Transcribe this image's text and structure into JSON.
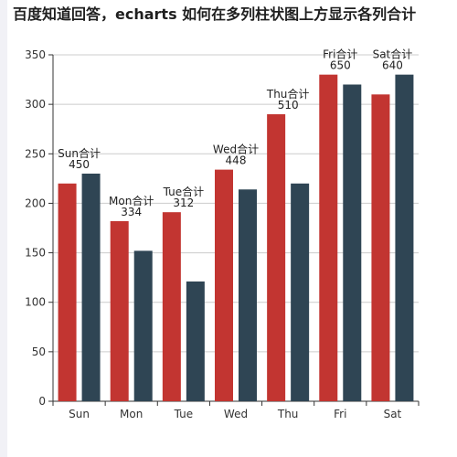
{
  "title": "百度知道回答，echarts 如何在多列柱状图上方显示各列合计",
  "chart_data": {
    "type": "bar",
    "categories": [
      "Sun",
      "Mon",
      "Tue",
      "Wed",
      "Thu",
      "Fri",
      "Sat"
    ],
    "series": [
      {
        "values": [
          220,
          182,
          191,
          234,
          290,
          330,
          310
        ],
        "color": "#c23531"
      },
      {
        "values": [
          230,
          152,
          121,
          214,
          220,
          320,
          330
        ],
        "color": "#2f4554"
      }
    ],
    "totals": [
      {
        "label": "Sun合计",
        "value": "450"
      },
      {
        "label": "Mon合计",
        "value": "334"
      },
      {
        "label": "Tue合计",
        "value": "312"
      },
      {
        "label": "Wed合计",
        "value": "448"
      },
      {
        "label": "Thu合计",
        "value": "510"
      },
      {
        "label": "Fri合计",
        "value": "650"
      },
      {
        "label": "Sat合计",
        "value": "640"
      }
    ],
    "ylim": [
      0,
      350
    ],
    "yticks": [
      0,
      50,
      100,
      150,
      200,
      250,
      300,
      350
    ],
    "grid": true
  }
}
